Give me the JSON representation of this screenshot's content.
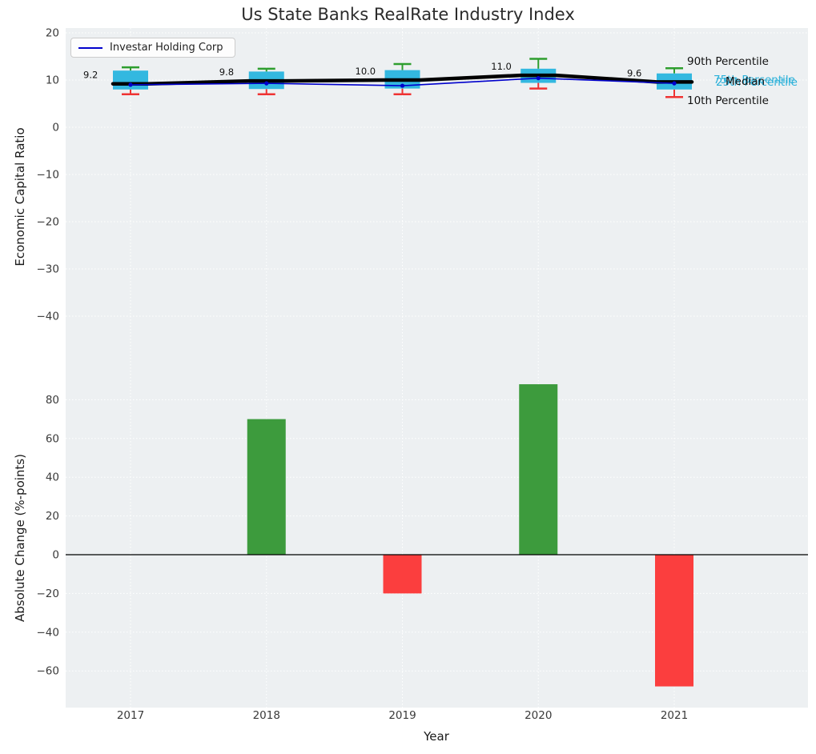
{
  "title": "Us State Banks RealRate Industry Index",
  "xlabel": "Year",
  "legend": {
    "series_label": "Investar Holding Corp"
  },
  "annotations": {
    "p90": "90th Percentile",
    "p75": "75th Percentile",
    "median": "Median",
    "p25": "25th Percentile",
    "p10": "10th Percentile"
  },
  "chart_data": [
    {
      "type": "candlestick",
      "ylabel": "Economic Capital Ratio",
      "ylim": [
        -50.7,
        21
      ],
      "yticks": [
        20,
        10,
        0,
        -10,
        -20,
        -30,
        -40
      ],
      "categories": [
        "2017",
        "2018",
        "2019",
        "2020",
        "2021"
      ],
      "percentiles": {
        "p90": [
          12.7,
          12.4,
          13.4,
          14.5,
          12.5
        ],
        "p75": [
          12.0,
          11.8,
          12.1,
          12.4,
          11.4
        ],
        "median": [
          9.2,
          9.8,
          10.0,
          11.0,
          9.6
        ],
        "p25": [
          8.0,
          8.1,
          8.2,
          9.4,
          8.0
        ],
        "p10": [
          7.0,
          7.0,
          7.0,
          8.2,
          6.4
        ]
      },
      "median_labels": [
        "9.2",
        "9.8",
        "10.0",
        "11.0",
        "9.6"
      ],
      "series": [
        {
          "name": "Investar Holding Corp",
          "values": [
            9.0,
            9.3,
            8.8,
            10.4,
            9.3
          ],
          "color": "#0000cc"
        }
      ],
      "colors": {
        "box": "#29b4de",
        "p90_whisker": "#2e9e2e",
        "p10_whisker": "#ef3333",
        "median_line": "#000000"
      },
      "legend_position": "upper-left",
      "grid": true
    },
    {
      "type": "bar",
      "ylabel": "Absolute Change (%-points)",
      "ylim": [
        -79,
        97
      ],
      "yticks": [
        80,
        60,
        40,
        20,
        0,
        -20,
        -40,
        -60
      ],
      "categories": [
        "2017",
        "2018",
        "2019",
        "2020",
        "2021"
      ],
      "values": [
        0,
        70,
        -20,
        88,
        -68
      ],
      "colors": {
        "positive": "#3d9b3d",
        "negative": "#fb3e3e",
        "zero_line": "#000000"
      },
      "grid": true
    }
  ]
}
